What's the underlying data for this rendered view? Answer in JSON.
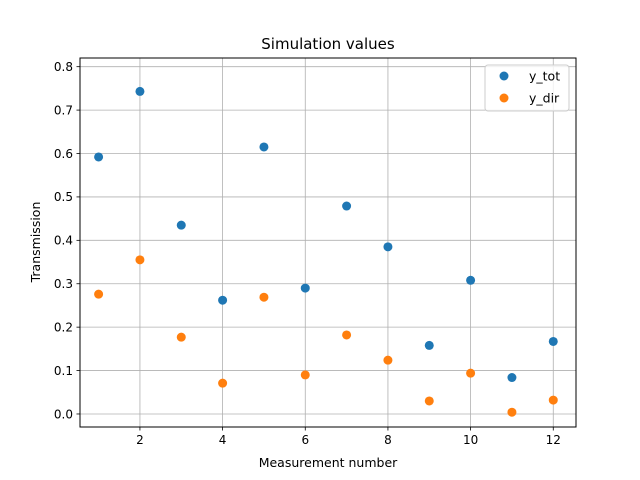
{
  "chart_data": {
    "type": "scatter",
    "title": "Simulation values",
    "xlabel": "Measurement number",
    "ylabel": "Transmission",
    "xlim": [
      0.55,
      12.55
    ],
    "ylim": [
      -0.03,
      0.82
    ],
    "xticks": [
      2,
      4,
      6,
      8,
      10,
      12
    ],
    "xtick_labels": [
      "2",
      "4",
      "6",
      "8",
      "10",
      "12"
    ],
    "yticks": [
      0.0,
      0.1,
      0.2,
      0.3,
      0.4,
      0.5,
      0.6,
      0.7,
      0.8
    ],
    "ytick_labels": [
      "0.0",
      "0.1",
      "0.2",
      "0.3",
      "0.4",
      "0.5",
      "0.6",
      "0.7",
      "0.8"
    ],
    "grid": true,
    "legend_position": "top-right",
    "x": [
      1,
      2,
      3,
      4,
      5,
      6,
      7,
      8,
      9,
      10,
      11,
      12
    ],
    "series": [
      {
        "name": "y_tot",
        "color": "#1f77b4",
        "values": [
          0.592,
          0.743,
          0.435,
          0.262,
          0.615,
          0.29,
          0.479,
          0.385,
          0.158,
          0.308,
          0.084,
          0.167
        ]
      },
      {
        "name": "y_dir",
        "color": "#ff7f0e",
        "values": [
          0.276,
          0.355,
          0.177,
          0.071,
          0.269,
          0.09,
          0.182,
          0.124,
          0.03,
          0.094,
          0.004,
          0.032
        ]
      }
    ]
  }
}
